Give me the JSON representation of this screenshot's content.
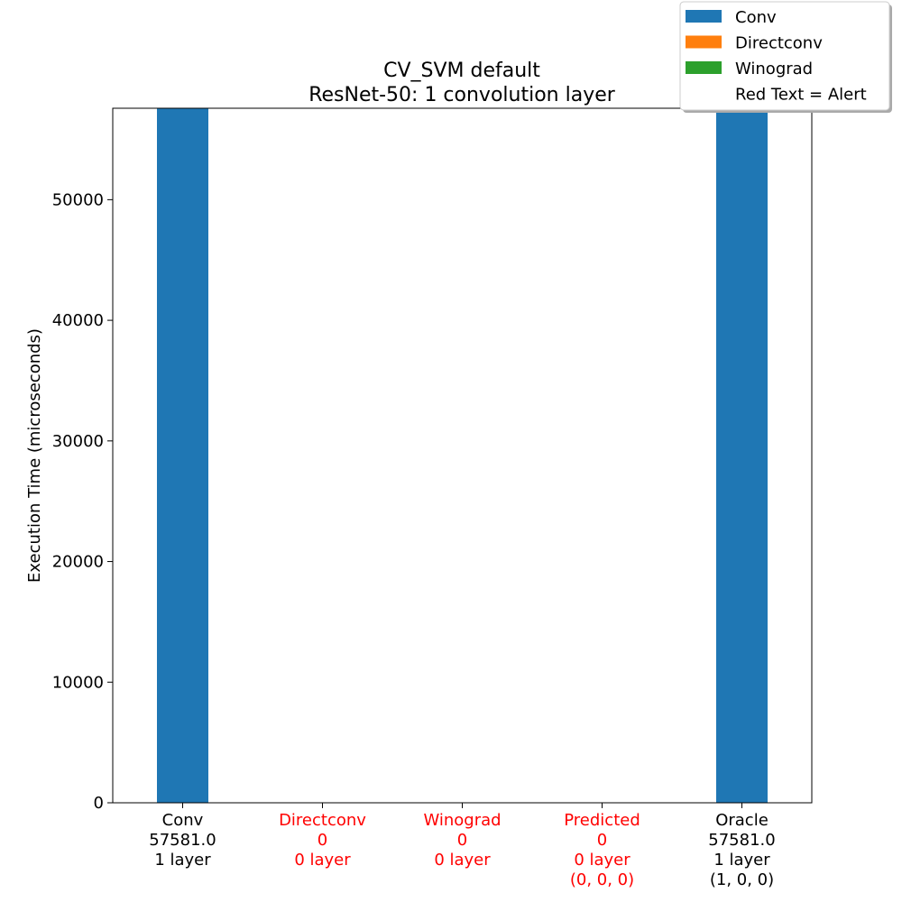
{
  "chart_data": {
    "type": "bar",
    "title_line1": "CV_SVM default",
    "title_line2": "ResNet-50: 1 convolution layer",
    "xlabel": "",
    "ylabel": "Execution Time (microseconds)",
    "ylim": [
      0,
      57581
    ],
    "yticks": [
      0,
      10000,
      20000,
      30000,
      40000,
      50000
    ],
    "grid": false,
    "legend_position": "top-right",
    "legend": [
      {
        "name": "Conv",
        "color": "#1f77b4"
      },
      {
        "name": "Directconv",
        "color": "#ff7f0e"
      },
      {
        "name": "Winograd",
        "color": "#2ca02c"
      },
      {
        "name": "Red Text = Alert",
        "color": null
      }
    ],
    "categories": [
      {
        "lines": [
          "Conv",
          "57581.0",
          "1 layer"
        ],
        "alert": false
      },
      {
        "lines": [
          "Directconv",
          "0",
          "0 layer"
        ],
        "alert": true
      },
      {
        "lines": [
          "Winograd",
          "0",
          "0 layer"
        ],
        "alert": true
      },
      {
        "lines": [
          "Predicted",
          "0",
          "0 layer",
          "(0, 0, 0)"
        ],
        "alert": true
      },
      {
        "lines": [
          "Oracle",
          "57581.0",
          "1 layer",
          "(1, 0, 0)"
        ],
        "alert": false
      }
    ],
    "series": [
      {
        "name": "Conv",
        "color": "#1f77b4",
        "values": [
          57581.0,
          0,
          0,
          0,
          57581.0
        ]
      },
      {
        "name": "Directconv",
        "color": "#ff7f0e",
        "values": [
          0,
          0,
          0,
          0,
          0
        ]
      },
      {
        "name": "Winograd",
        "color": "#2ca02c",
        "values": [
          0,
          0,
          0,
          0,
          0
        ]
      }
    ],
    "alert_color": "#ff0000"
  }
}
